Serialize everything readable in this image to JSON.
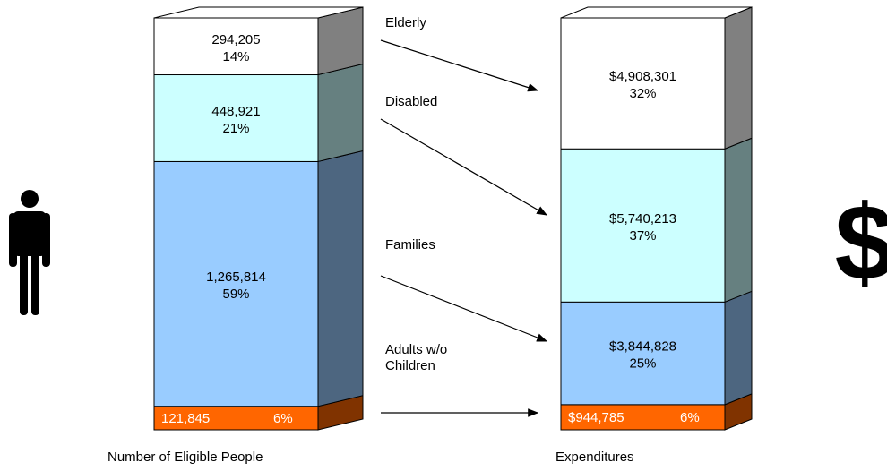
{
  "chart_data": [
    {
      "type": "bar",
      "stacked": true,
      "xlabel": "Number of Eligible People",
      "series": [
        {
          "name": "Adults w/o Children",
          "color": "#ff6600",
          "values": [
            121845
          ],
          "value_labels": [
            "121,845"
          ],
          "shares": [
            6
          ],
          "share_labels": [
            "6%"
          ]
        },
        {
          "name": "Families",
          "color": "#99ccff",
          "values": [
            1265814
          ],
          "value_labels": [
            "1,265,814"
          ],
          "shares": [
            59
          ],
          "share_labels": [
            "59%"
          ]
        },
        {
          "name": "Disabled",
          "color": "#ccffff",
          "values": [
            448921
          ],
          "value_labels": [
            "448,921"
          ],
          "shares": [
            21
          ],
          "share_labels": [
            "21%"
          ]
        },
        {
          "name": "Elderly",
          "color": "#ffffff",
          "values": [
            294205
          ],
          "value_labels": [
            "294,205"
          ],
          "shares": [
            14
          ],
          "share_labels": [
            "14%"
          ]
        }
      ]
    },
    {
      "type": "bar",
      "stacked": true,
      "xlabel": "Expenditures",
      "series": [
        {
          "color": "#ff6600",
          "values": [
            944785
          ],
          "value_labels": [
            "$944,785"
          ],
          "shares": [
            6
          ],
          "share_labels": [
            "6%"
          ]
        },
        {
          "color": "#99ccff",
          "values": [
            3844828
          ],
          "value_labels": [
            "$3,844,828"
          ],
          "shares": [
            25
          ],
          "share_labels": [
            "25%"
          ]
        },
        {
          "color": "#ccffff",
          "values": [
            5740213
          ],
          "value_labels": [
            "$5,740,213"
          ],
          "shares": [
            37
          ],
          "share_labels": [
            "37%"
          ]
        },
        {
          "color": "#ffffff",
          "values": [
            4908301
          ],
          "value_labels": [
            "$4,908,301"
          ],
          "shares": [
            32
          ],
          "share_labels": [
            "32%"
          ]
        }
      ]
    }
  ]
}
